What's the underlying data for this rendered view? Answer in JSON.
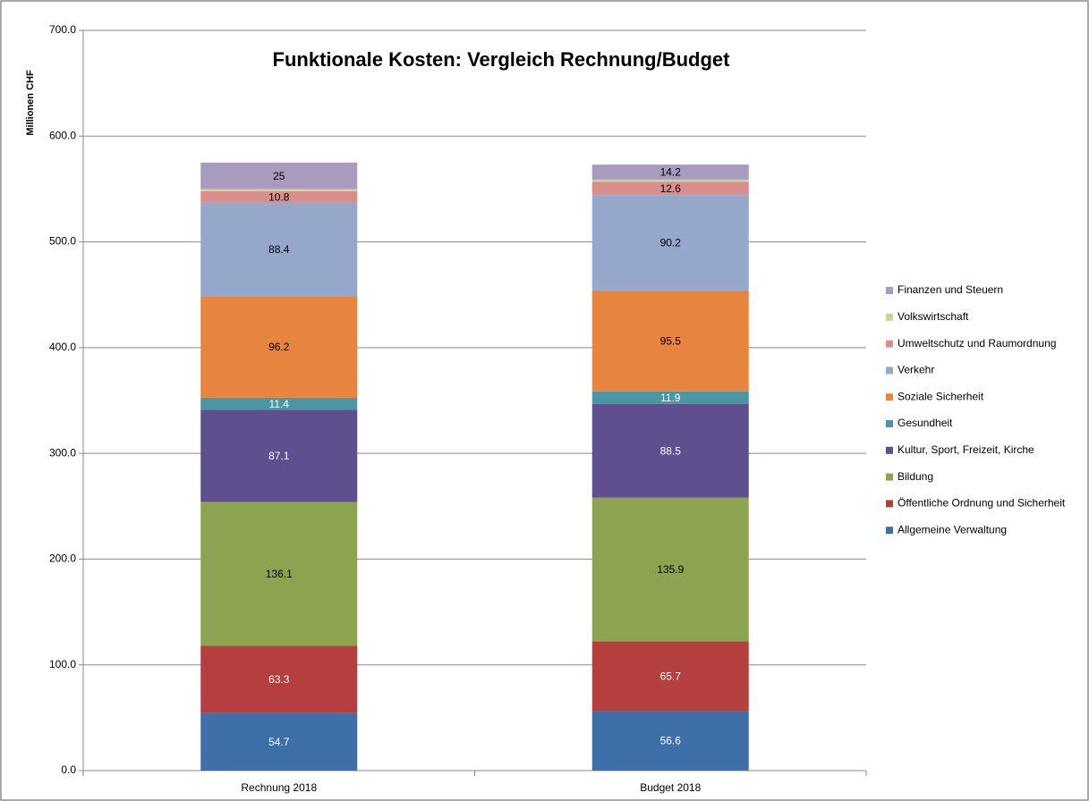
{
  "chart_data": {
    "type": "stacked_bar",
    "title": "Funktionale Kosten: Vergleich Rechnung/Budget",
    "y_label": "Millionen CHF",
    "categories": [
      "Rechnung 2018",
      "Budget 2018"
    ],
    "series": [
      {
        "name": "Allgemeine Verwaltung",
        "color": "#3f6fa8",
        "values": [
          54.7,
          56.6
        ]
      },
      {
        "name": "Öffentliche Ordnung und Sicherheit",
        "color": "#b3403e",
        "values": [
          63.3,
          65.7
        ]
      },
      {
        "name": "Bildung",
        "color": "#8ca44f",
        "values": [
          136.1,
          135.9
        ]
      },
      {
        "name": "Kultur, Sport, Freizeit, Kirche",
        "color": "#5f4f8f",
        "values": [
          87.1,
          88.5
        ]
      },
      {
        "name": "Gesundheit",
        "color": "#4a97a3",
        "values": [
          11.4,
          11.9
        ]
      },
      {
        "name": "Soziale Sicherheit",
        "color": "#e7843f",
        "values": [
          96.2,
          95.5
        ]
      },
      {
        "name": "Verkehr",
        "color": "#95a8cb",
        "values": [
          88.4,
          90.2
        ]
      },
      {
        "name": "Umweltschutz und Raumordnung",
        "color": "#d98e8d",
        "values": [
          10.8,
          12.6
        ]
      },
      {
        "name": "Volkswirtschaft",
        "color": "#c3d69b",
        "values": [
          2.0,
          2.0
        ],
        "value_labels": [
          "2.0",
          "2.0"
        ]
      },
      {
        "name": "Finanzen und Steuern",
        "color": "#a99bbd",
        "values": [
          25.0,
          14.2
        ]
      }
    ],
    "ylim": [
      0,
      700
    ],
    "yticks": [
      {
        "value": 0,
        "label": "0.0"
      },
      {
        "value": 100,
        "label": "100.0"
      },
      {
        "value": 200,
        "label": "200.0"
      },
      {
        "value": 300,
        "label": "300.0"
      },
      {
        "value": 400,
        "label": "400.0"
      },
      {
        "value": 500,
        "label": "500.0"
      },
      {
        "value": 600,
        "label": "600.0"
      },
      {
        "value": 700,
        "label": "700.0"
      }
    ],
    "grid": true,
    "legend": "right"
  }
}
